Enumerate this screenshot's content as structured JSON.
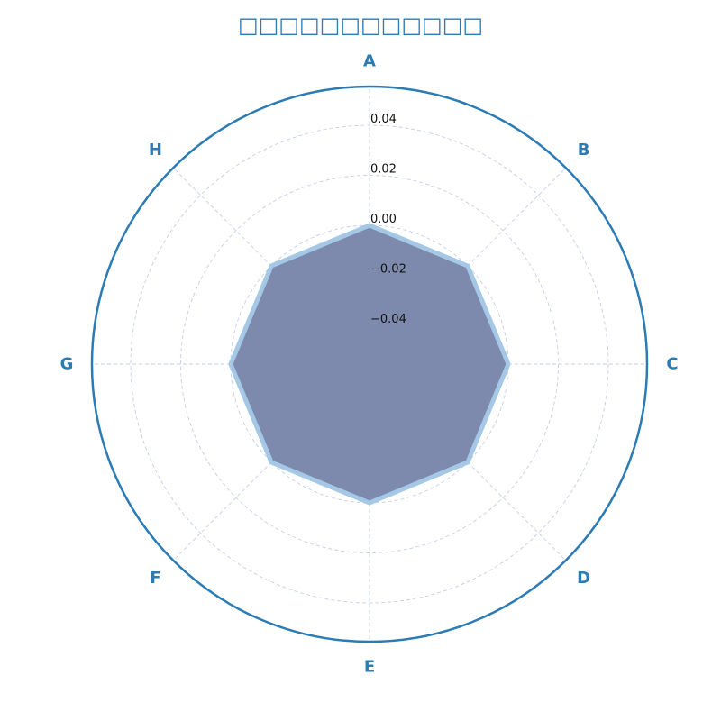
{
  "chart_data": {
    "type": "radar",
    "title": "□□□□□□□□□□□□",
    "categories": [
      "A",
      "B",
      "C",
      "D",
      "E",
      "F",
      "G",
      "H"
    ],
    "series": [
      {
        "values": [
          0.0,
          0.0,
          0.0,
          0.0,
          0.0,
          0.0,
          0.0,
          0.0
        ]
      }
    ],
    "rlim": [
      -0.0555,
      0.0555
    ],
    "rticks": [
      -0.04,
      -0.02,
      0.0,
      0.02,
      0.04
    ],
    "rtick_labels": [
      "−0.04",
      "−0.02",
      "0.00",
      "0.02",
      "0.04"
    ],
    "grid": true,
    "colors": {
      "title": "#2b7bb4",
      "outer_ring": "#2b7bb4",
      "grid": "#c5cde6",
      "fill": "#7d8aad",
      "line": "#a4c8e6",
      "axis_label": "#2b7bb4"
    }
  }
}
